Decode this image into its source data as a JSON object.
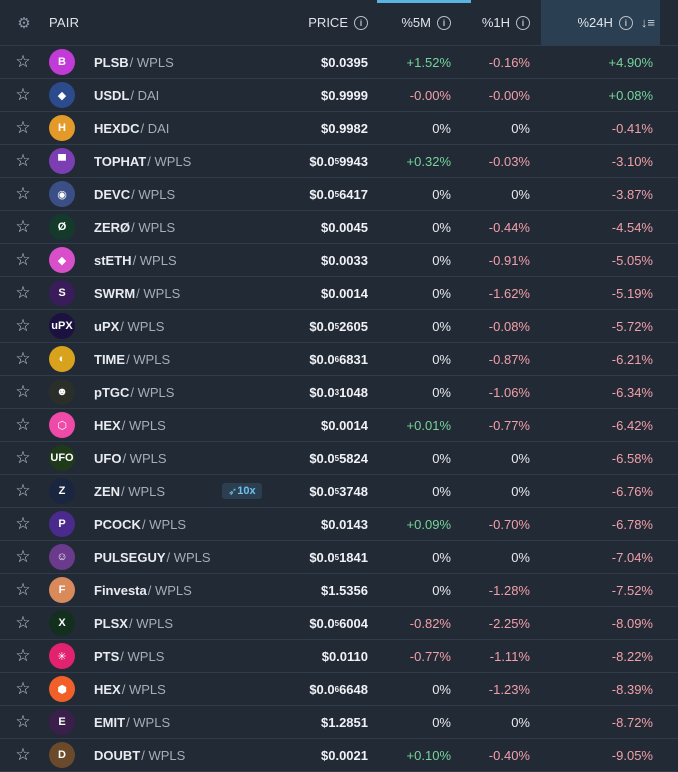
{
  "header": {
    "pair": "PAIR",
    "price": "PRICE",
    "m5": "%5M",
    "h1": "%1H",
    "h24": "%24H",
    "info_glyph": "i",
    "gear_icon": "gear-icon",
    "sort_icon": "sort-desc-icon"
  },
  "colors": {
    "positive": "#76d49a",
    "negative": "#f2a0a8",
    "accent": "#5ab4e0"
  },
  "rows": [
    {
      "sym": "PLSB",
      "quote": "/ WPLS",
      "price": "$0.0395",
      "sub": "",
      "m5": "+1.52%",
      "h1": "-0.16%",
      "h24": "+4.90%",
      "logo": "B",
      "bg": "#c33bd6",
      "boost": ""
    },
    {
      "sym": "USDL",
      "quote": "/ DAI",
      "price": "$0.9999",
      "sub": "",
      "m5": "-0.00%",
      "h1": "-0.00%",
      "h24": "+0.08%",
      "logo": "◆",
      "bg": "#2b4b8c",
      "boost": ""
    },
    {
      "sym": "HEXDC",
      "quote": "/ DAI",
      "price": "$0.9982",
      "sub": "",
      "m5": "0%",
      "h1": "0%",
      "h24": "-0.41%",
      "logo": "H",
      "bg": "#e39a28",
      "boost": ""
    },
    {
      "sym": "TOPHAT",
      "quote": "/ WPLS",
      "price": "$0.0",
      "sub": "5",
      "rest": "9943",
      "m5": "+0.32%",
      "h1": "-0.03%",
      "h24": "-3.10%",
      "logo": "▀",
      "bg": "#7b3fb3",
      "boost": ""
    },
    {
      "sym": "DEVC",
      "quote": "/ WPLS",
      "price": "$0.0",
      "sub": "5",
      "rest": "6417",
      "m5": "0%",
      "h1": "0%",
      "h24": "-3.87%",
      "logo": "◉",
      "bg": "#3a4f86",
      "boost": ""
    },
    {
      "sym": "ZERØ",
      "quote": "/ WPLS",
      "price": "$0.0045",
      "sub": "",
      "m5": "0%",
      "h1": "-0.44%",
      "h24": "-4.54%",
      "logo": "Ø",
      "bg": "#143a2c",
      "boost": ""
    },
    {
      "sym": "stETH",
      "quote": "/ WPLS",
      "price": "$0.0033",
      "sub": "",
      "m5": "0%",
      "h1": "-0.91%",
      "h24": "-5.05%",
      "logo": "◆",
      "bg": "#d94ec9",
      "boost": ""
    },
    {
      "sym": "SWRM",
      "quote": "/ WPLS",
      "price": "$0.0014",
      "sub": "",
      "m5": "0%",
      "h1": "-1.62%",
      "h24": "-5.19%",
      "logo": "S",
      "bg": "#3a1c5a",
      "boost": ""
    },
    {
      "sym": "uPX",
      "quote": "/ WPLS",
      "price": "$0.0",
      "sub": "5",
      "rest": "2605",
      "m5": "0%",
      "h1": "-0.08%",
      "h24": "-5.72%",
      "logo": "uPX",
      "bg": "#1b1240",
      "boost": ""
    },
    {
      "sym": "TIME",
      "quote": "/ WPLS",
      "price": "$0.0",
      "sub": "6",
      "rest": "6831",
      "m5": "0%",
      "h1": "-0.87%",
      "h24": "-6.21%",
      "logo": "◐",
      "bg": "#d9a21d",
      "boost": ""
    },
    {
      "sym": "pTGC",
      "quote": "/ WPLS",
      "price": "$0.0",
      "sub": "3",
      "rest": "1048",
      "m5": "0%",
      "h1": "-1.06%",
      "h24": "-6.34%",
      "logo": "☻",
      "bg": "#2a2f2a",
      "boost": ""
    },
    {
      "sym": "HEX",
      "quote": "/ WPLS",
      "price": "$0.0014",
      "sub": "",
      "m5": "+0.01%",
      "h1": "-0.77%",
      "h24": "-6.42%",
      "logo": "⬡",
      "bg": "#f04aa8",
      "boost": ""
    },
    {
      "sym": "UFO",
      "quote": "/ WPLS",
      "price": "$0.0",
      "sub": "5",
      "rest": "5824",
      "m5": "0%",
      "h1": "0%",
      "h24": "-6.58%",
      "logo": "UFO",
      "bg": "#1f3a1a",
      "boost": ""
    },
    {
      "sym": "ZEN",
      "quote": "/ WPLS",
      "price": "$0.0",
      "sub": "5",
      "rest": "3748",
      "m5": "0%",
      "h1": "0%",
      "h24": "-6.76%",
      "logo": "Z",
      "bg": "#1a2540",
      "boost": "10x"
    },
    {
      "sym": "PCOCK",
      "quote": "/ WPLS",
      "price": "$0.0143",
      "sub": "",
      "m5": "+0.09%",
      "h1": "-0.70%",
      "h24": "-6.78%",
      "logo": "P",
      "bg": "#4a2a8c",
      "boost": ""
    },
    {
      "sym": "PULSEGUY",
      "quote": "/ WPLS",
      "price": "$0.0",
      "sub": "5",
      "rest": "1841",
      "m5": "0%",
      "h1": "0%",
      "h24": "-7.04%",
      "logo": "☺",
      "bg": "#6a3a8c",
      "boost": ""
    },
    {
      "sym": "Finvesta",
      "quote": "/ WPLS",
      "price": "$1.5356",
      "sub": "",
      "m5": "0%",
      "h1": "-1.28%",
      "h24": "-7.52%",
      "logo": "F",
      "bg": "#d98a5a",
      "boost": ""
    },
    {
      "sym": "PLSX",
      "quote": "/ WPLS",
      "price": "$0.0",
      "sub": "5",
      "rest": "6004",
      "m5": "-0.82%",
      "h1": "-2.25%",
      "h24": "-8.09%",
      "logo": "X",
      "bg": "#13301f",
      "boost": ""
    },
    {
      "sym": "PTS",
      "quote": "/ WPLS",
      "price": "$0.0110",
      "sub": "",
      "m5": "-0.77%",
      "h1": "-1.11%",
      "h24": "-8.22%",
      "logo": "✳",
      "bg": "#e2226f",
      "boost": ""
    },
    {
      "sym": "HEX",
      "quote": "/ WPLS",
      "price": "$0.0",
      "sub": "6",
      "rest": "6648",
      "m5": "0%",
      "h1": "-1.23%",
      "h24": "-8.39%",
      "logo": "⬢",
      "bg": "#f2602a",
      "boost": ""
    },
    {
      "sym": "EMIT",
      "quote": "/ WPLS",
      "price": "$1.2851",
      "sub": "",
      "m5": "0%",
      "h1": "0%",
      "h24": "-8.72%",
      "logo": "E",
      "bg": "#3a1f4a",
      "boost": ""
    },
    {
      "sym": "DOUBT",
      "quote": "/ WPLS",
      "price": "$0.0021",
      "sub": "",
      "m5": "+0.10%",
      "h1": "-0.40%",
      "h24": "-9.05%",
      "logo": "D",
      "bg": "#6a4a2a",
      "boost": ""
    }
  ]
}
